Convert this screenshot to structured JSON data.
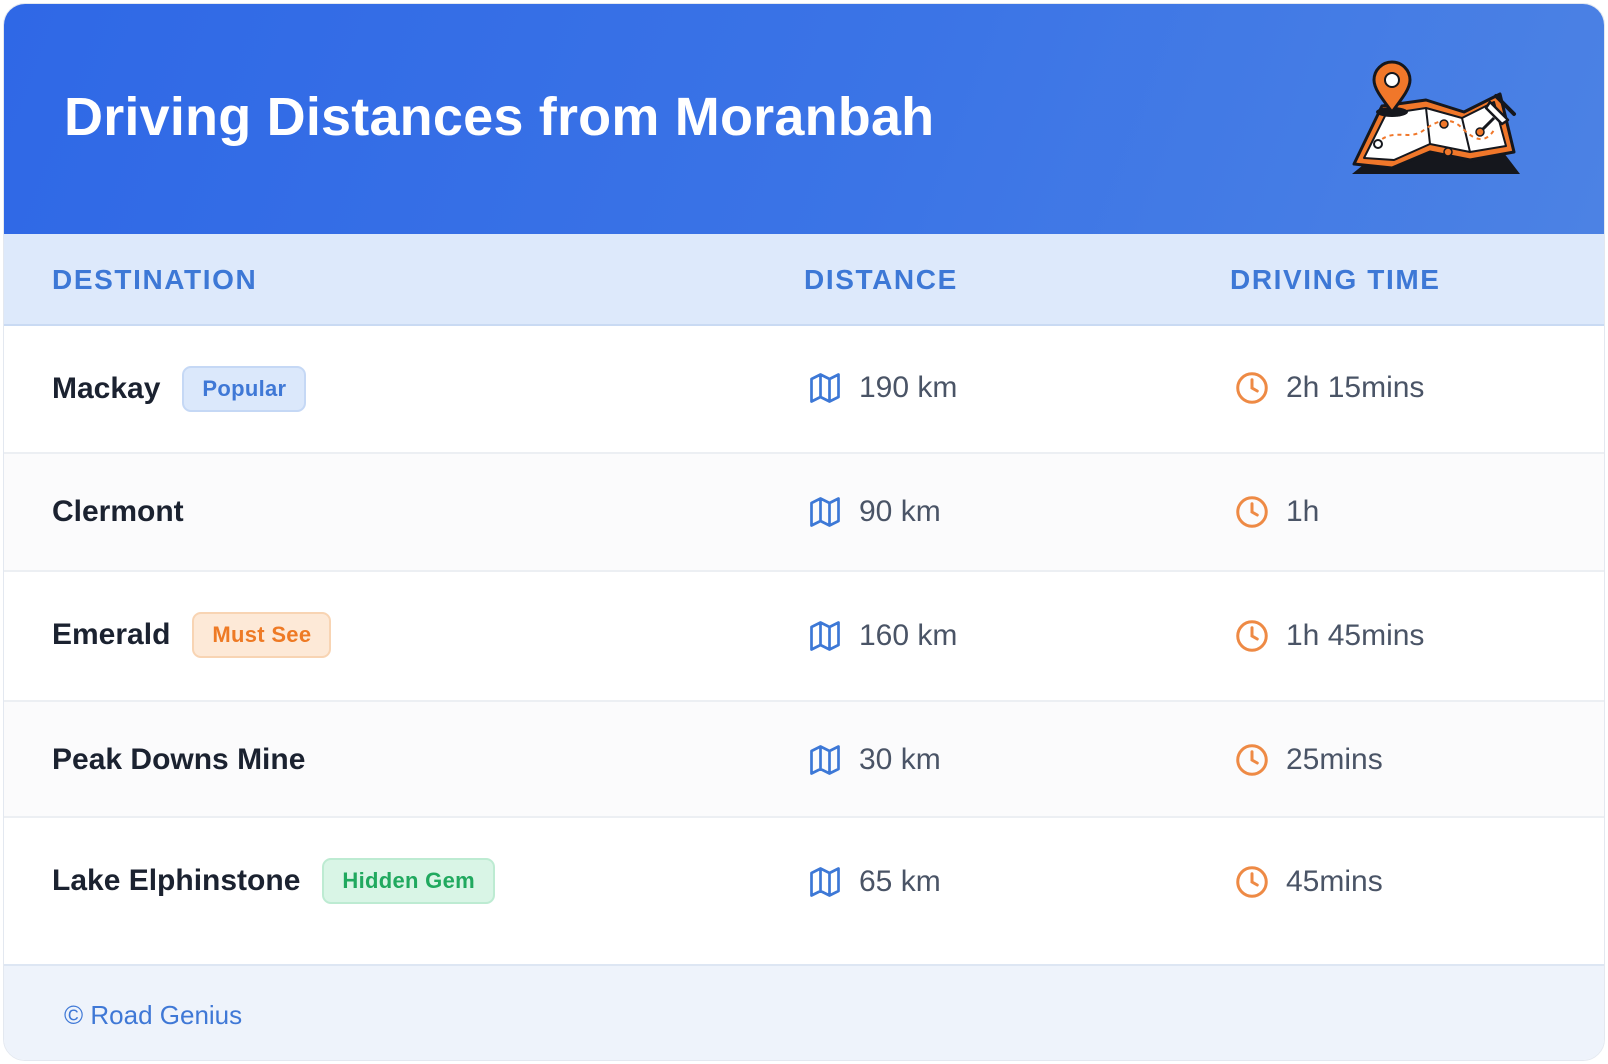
{
  "header": {
    "title": "Driving Distances from Moranbah",
    "illustration": "map-with-pins-icon"
  },
  "table": {
    "columns": [
      "DESTINATION",
      "DISTANCE",
      "DRIVING TIME"
    ],
    "rows": [
      {
        "destination": "Mackay",
        "badge": "Popular",
        "badge_color": "#3f78d6",
        "distance": "190 km",
        "time": "2h 15mins"
      },
      {
        "destination": "Clermont",
        "badge": "",
        "badge_color": "",
        "distance": "90 km",
        "time": "1h"
      },
      {
        "destination": "Emerald",
        "badge": "Must See",
        "badge_color": "#ee7a25",
        "distance": "160 km",
        "time": "1h 45mins"
      },
      {
        "destination": "Peak Downs Mine",
        "badge": "",
        "badge_color": "",
        "distance": "30 km",
        "time": "25mins"
      },
      {
        "destination": "Lake Elphinstone",
        "badge": "Hidden Gem",
        "badge_color": "#21a95f",
        "distance": "65 km",
        "time": "45mins"
      }
    ],
    "distance_icon": "map-icon",
    "time_icon": "clock-icon"
  },
  "footer": {
    "copyright": "© Road Genius"
  },
  "colors": {
    "header_gradient_start": "#2f68e6",
    "header_gradient_end": "#4c82e4",
    "accent_blue": "#3d78d6",
    "accent_orange": "#ee8a45",
    "dark_text": "#1b2230"
  }
}
